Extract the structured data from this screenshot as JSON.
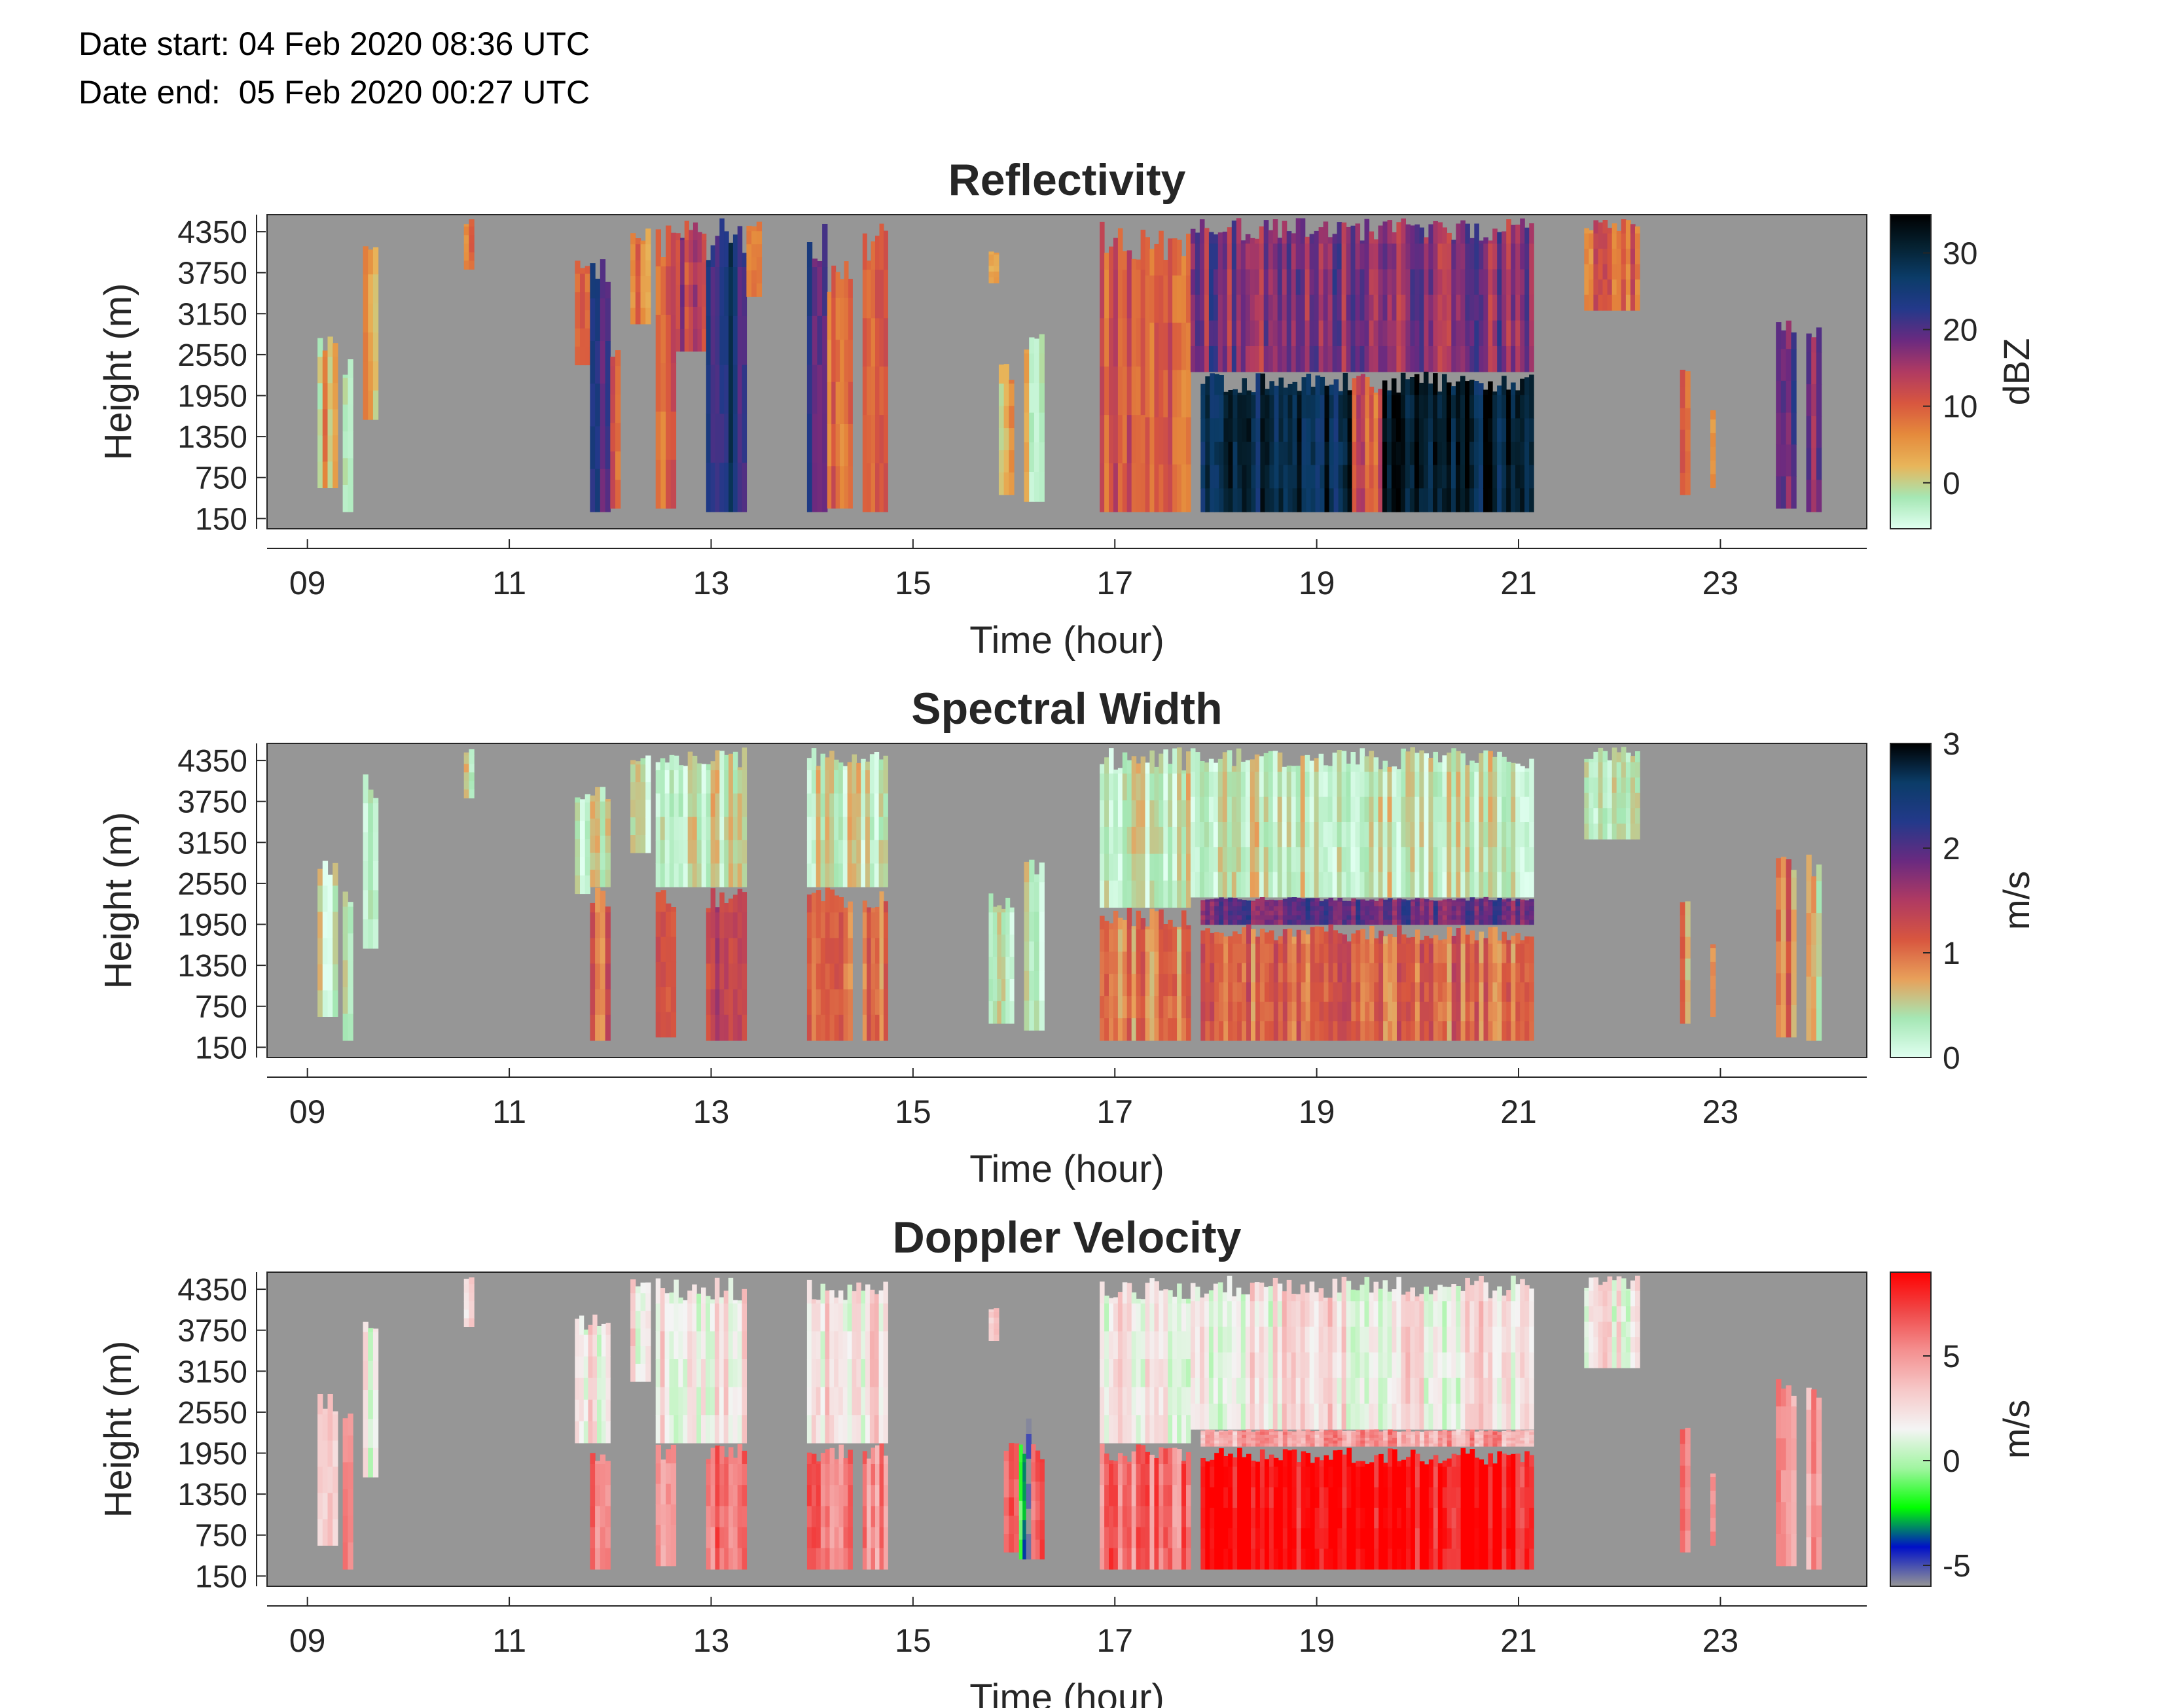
{
  "header": {
    "date_start": "Date start: 04 Feb 2020 08:36 UTC",
    "date_end": "Date end:  05 Feb 2020 00:27 UTC"
  },
  "colors": {
    "missing": "#969696",
    "axis": "#262626",
    "reflectivity_cmap": [
      "#e0fff0",
      "#a5e7b4",
      "#e8b55a",
      "#e58a3c",
      "#d8563f",
      "#b03a62",
      "#6a2a80",
      "#23398a",
      "#0b3c68",
      "#052130",
      "#000000"
    ],
    "spectral_width_cmap": [
      "#e0fff0",
      "#a5e7b4",
      "#e8a05a",
      "#d8563f",
      "#b03a62",
      "#6a2a80",
      "#23398a",
      "#0b3c68",
      "#000000"
    ],
    "doppler_cmap": [
      "#969696",
      "#0010c8",
      "#00ff00",
      "#a0f5a0",
      "#f4f4f4",
      "#f6c8c8",
      "#f49090",
      "#f04848",
      "#ff0000"
    ]
  },
  "chart_data": [
    {
      "type": "heatmap",
      "id": "reflectivity",
      "title": "Reflectivity",
      "xlabel": "Time (hour)",
      "ylabel": "Height (m)",
      "xlim": [
        8.6,
        24.45
      ],
      "ylim": [
        0,
        4600
      ],
      "x_ticks": [
        "09",
        "11",
        "13",
        "15",
        "17",
        "19",
        "21",
        "23"
      ],
      "x_tick_values": [
        9,
        11,
        13,
        15,
        17,
        19,
        21,
        23
      ],
      "y_ticks": [
        "4350",
        "3750",
        "3150",
        "2550",
        "1950",
        "1350",
        "750",
        "150"
      ],
      "y_tick_values": [
        4350,
        3750,
        3150,
        2550,
        1950,
        1350,
        750,
        150
      ],
      "colorbar": {
        "label": "dBZ",
        "range": [
          -6,
          35
        ],
        "ticks": [
          0,
          10,
          20,
          30
        ]
      },
      "echoes": [
        {
          "start": 9.1,
          "end": 9.3,
          "top": 2900,
          "bottom": 600,
          "value": 4
        },
        {
          "start": 9.35,
          "end": 9.45,
          "top": 2600,
          "bottom": 250,
          "value": 1
        },
        {
          "start": 9.55,
          "end": 9.7,
          "top": 4150,
          "bottom": 1600,
          "value": 3
        },
        {
          "start": 10.55,
          "end": 10.65,
          "top": 4550,
          "bottom": 3800,
          "value": 6
        },
        {
          "start": 11.65,
          "end": 11.8,
          "top": 4000,
          "bottom": 2400,
          "value": 8
        },
        {
          "start": 11.8,
          "end": 12.0,
          "top": 4000,
          "bottom": 250,
          "value": 21
        },
        {
          "start": 12.0,
          "end": 12.1,
          "top": 2800,
          "bottom": 300,
          "value": 12
        },
        {
          "start": 12.2,
          "end": 12.4,
          "top": 4400,
          "bottom": 3000,
          "value": 6
        },
        {
          "start": 12.45,
          "end": 12.65,
          "top": 4550,
          "bottom": 300,
          "value": 11
        },
        {
          "start": 12.65,
          "end": 12.95,
          "top": 4550,
          "bottom": 2600,
          "value": 14
        },
        {
          "start": 12.95,
          "end": 13.35,
          "top": 4550,
          "bottom": 250,
          "value": 24
        },
        {
          "start": 13.35,
          "end": 13.5,
          "top": 4550,
          "bottom": 3400,
          "value": 6
        },
        {
          "start": 13.95,
          "end": 14.15,
          "top": 4550,
          "bottom": 250,
          "value": 19
        },
        {
          "start": 14.15,
          "end": 14.4,
          "top": 4000,
          "bottom": 300,
          "value": 10
        },
        {
          "start": 14.5,
          "end": 14.75,
          "top": 4500,
          "bottom": 250,
          "value": 10
        },
        {
          "start": 15.75,
          "end": 15.85,
          "top": 4100,
          "bottom": 3600,
          "value": 2
        },
        {
          "start": 15.85,
          "end": 16.0,
          "top": 2450,
          "bottom": 500,
          "value": 2
        },
        {
          "start": 16.1,
          "end": 16.3,
          "top": 3000,
          "bottom": 400,
          "value": 1
        },
        {
          "start": 16.85,
          "end": 17.3,
          "top": 4500,
          "bottom": 250,
          "value": 11
        },
        {
          "start": 17.3,
          "end": 17.75,
          "top": 4400,
          "bottom": 250,
          "value": 10
        },
        {
          "start": 17.75,
          "end": 21.15,
          "top": 4550,
          "bottom": 2300,
          "value": 17
        },
        {
          "start": 17.85,
          "end": 19.35,
          "top": 2300,
          "bottom": 250,
          "value": 29
        },
        {
          "start": 19.35,
          "end": 19.65,
          "top": 2300,
          "bottom": 250,
          "value": 11
        },
        {
          "start": 19.65,
          "end": 21.15,
          "top": 2300,
          "bottom": 250,
          "value": 31
        },
        {
          "start": 21.65,
          "end": 22.2,
          "top": 4550,
          "bottom": 3200,
          "value": 9
        },
        {
          "start": 22.6,
          "end": 22.7,
          "top": 2400,
          "bottom": 500,
          "value": 9
        },
        {
          "start": 22.9,
          "end": 22.95,
          "top": 1800,
          "bottom": 600,
          "value": 9
        },
        {
          "start": 23.55,
          "end": 23.75,
          "top": 3100,
          "bottom": 300,
          "value": 19
        },
        {
          "start": 23.85,
          "end": 24.0,
          "top": 3050,
          "bottom": 250,
          "value": 19
        }
      ]
    },
    {
      "type": "heatmap",
      "id": "spectral_width",
      "title": "Spectral Width",
      "xlabel": "Time (hour)",
      "ylabel": "Height (m)",
      "xlim": [
        8.6,
        24.45
      ],
      "ylim": [
        0,
        4600
      ],
      "x_ticks": [
        "09",
        "11",
        "13",
        "15",
        "17",
        "19",
        "21",
        "23"
      ],
      "x_tick_values": [
        9,
        11,
        13,
        15,
        17,
        19,
        21,
        23
      ],
      "y_ticks": [
        "4350",
        "3750",
        "3150",
        "2550",
        "1950",
        "1350",
        "750",
        "150"
      ],
      "y_tick_values": [
        4350,
        3750,
        3150,
        2550,
        1950,
        1350,
        750,
        150
      ],
      "colorbar": {
        "label": "m/s",
        "range": [
          0,
          3
        ],
        "ticks": [
          0,
          1,
          2,
          3
        ]
      },
      "echoes": [
        {
          "start": 9.1,
          "end": 9.3,
          "top": 2900,
          "bottom": 600,
          "value": 0.3
        },
        {
          "start": 9.35,
          "end": 9.45,
          "top": 2600,
          "bottom": 250,
          "value": 0.25
        },
        {
          "start": 9.55,
          "end": 9.7,
          "top": 4150,
          "bottom": 1600,
          "value": 0.25
        },
        {
          "start": 10.55,
          "end": 10.65,
          "top": 4550,
          "bottom": 3800,
          "value": 0.3
        },
        {
          "start": 11.65,
          "end": 11.8,
          "top": 4000,
          "bottom": 2400,
          "value": 0.35
        },
        {
          "start": 11.8,
          "end": 12.0,
          "top": 2500,
          "bottom": 250,
          "value": 1.1
        },
        {
          "start": 11.8,
          "end": 12.0,
          "top": 4000,
          "bottom": 2500,
          "value": 0.35
        },
        {
          "start": 12.2,
          "end": 12.4,
          "top": 4550,
          "bottom": 3000,
          "value": 0.3
        },
        {
          "start": 12.45,
          "end": 12.95,
          "top": 4550,
          "bottom": 2500,
          "value": 0.35
        },
        {
          "start": 12.45,
          "end": 12.65,
          "top": 2500,
          "bottom": 300,
          "value": 1.0
        },
        {
          "start": 12.95,
          "end": 13.35,
          "top": 4550,
          "bottom": 2500,
          "value": 0.4
        },
        {
          "start": 12.95,
          "end": 13.35,
          "top": 2500,
          "bottom": 250,
          "value": 1.25
        },
        {
          "start": 13.95,
          "end": 14.75,
          "top": 4550,
          "bottom": 2500,
          "value": 0.35
        },
        {
          "start": 13.95,
          "end": 14.4,
          "top": 2500,
          "bottom": 250,
          "value": 1.1
        },
        {
          "start": 14.5,
          "end": 14.75,
          "top": 2500,
          "bottom": 250,
          "value": 1.0
        },
        {
          "start": 15.75,
          "end": 16.0,
          "top": 2450,
          "bottom": 500,
          "value": 0.3
        },
        {
          "start": 16.1,
          "end": 16.3,
          "top": 3000,
          "bottom": 400,
          "value": 0.3
        },
        {
          "start": 16.85,
          "end": 17.75,
          "top": 4550,
          "bottom": 2200,
          "value": 0.35
        },
        {
          "start": 16.85,
          "end": 17.75,
          "top": 2200,
          "bottom": 250,
          "value": 0.9
        },
        {
          "start": 17.75,
          "end": 21.15,
          "top": 4550,
          "bottom": 2350,
          "value": 0.35
        },
        {
          "start": 17.85,
          "end": 21.15,
          "top": 2350,
          "bottom": 1950,
          "value": 1.9
        },
        {
          "start": 17.85,
          "end": 21.15,
          "top": 1950,
          "bottom": 250,
          "value": 1.05
        },
        {
          "start": 21.65,
          "end": 22.2,
          "top": 4550,
          "bottom": 3200,
          "value": 0.3
        },
        {
          "start": 22.6,
          "end": 22.7,
          "top": 2400,
          "bottom": 500,
          "value": 0.8
        },
        {
          "start": 22.9,
          "end": 22.95,
          "top": 1800,
          "bottom": 600,
          "value": 0.9
        },
        {
          "start": 23.55,
          "end": 23.75,
          "top": 3100,
          "bottom": 300,
          "value": 0.9
        },
        {
          "start": 23.85,
          "end": 24.0,
          "top": 3050,
          "bottom": 250,
          "value": 0.8
        }
      ]
    },
    {
      "type": "heatmap",
      "id": "doppler_velocity",
      "title": "Doppler Velocity",
      "xlabel": "Time (hour)",
      "ylabel": "Height (m)",
      "xlim": [
        8.6,
        24.45
      ],
      "ylim": [
        0,
        4600
      ],
      "x_ticks": [
        "09",
        "11",
        "13",
        "15",
        "17",
        "19",
        "21",
        "23"
      ],
      "x_tick_values": [
        9,
        11,
        13,
        15,
        17,
        19,
        21,
        23
      ],
      "y_ticks": [
        "4350",
        "3750",
        "3150",
        "2550",
        "1950",
        "1350",
        "750",
        "150"
      ],
      "y_tick_values": [
        4350,
        3750,
        3150,
        2550,
        1950,
        1350,
        750,
        150
      ],
      "colorbar": {
        "label": "m/s",
        "range": [
          -6,
          9
        ],
        "ticks": [
          -5,
          0,
          5
        ]
      },
      "echoes": [
        {
          "start": 9.1,
          "end": 9.3,
          "top": 2900,
          "bottom": 600,
          "value": 2
        },
        {
          "start": 9.35,
          "end": 9.45,
          "top": 2600,
          "bottom": 250,
          "value": 5
        },
        {
          "start": 9.55,
          "end": 9.7,
          "top": 4150,
          "bottom": 1600,
          "value": 2
        },
        {
          "start": 10.55,
          "end": 10.65,
          "top": 4550,
          "bottom": 3800,
          "value": 2
        },
        {
          "start": 11.65,
          "end": 12.0,
          "top": 4000,
          "bottom": 2100,
          "value": 2
        },
        {
          "start": 11.8,
          "end": 12.0,
          "top": 2100,
          "bottom": 250,
          "value": 6
        },
        {
          "start": 12.2,
          "end": 12.4,
          "top": 4550,
          "bottom": 3000,
          "value": 2
        },
        {
          "start": 12.45,
          "end": 13.35,
          "top": 4550,
          "bottom": 2100,
          "value": 2.2
        },
        {
          "start": 12.45,
          "end": 12.65,
          "top": 2100,
          "bottom": 300,
          "value": 5.5
        },
        {
          "start": 12.95,
          "end": 13.35,
          "top": 2100,
          "bottom": 250,
          "value": 6.5
        },
        {
          "start": 13.95,
          "end": 14.75,
          "top": 4550,
          "bottom": 2100,
          "value": 2.2
        },
        {
          "start": 13.95,
          "end": 14.4,
          "top": 2100,
          "bottom": 250,
          "value": 5.5
        },
        {
          "start": 14.5,
          "end": 14.75,
          "top": 2100,
          "bottom": 250,
          "value": 5.5
        },
        {
          "start": 15.75,
          "end": 15.85,
          "top": 4100,
          "bottom": 3600,
          "value": 2
        },
        {
          "start": 15.9,
          "end": 16.05,
          "top": 2100,
          "bottom": 500,
          "value": 6.5
        },
        {
          "start": 16.05,
          "end": 16.12,
          "top": 2100,
          "bottom": 400,
          "value": -2.5
        },
        {
          "start": 16.12,
          "end": 16.17,
          "top": 2600,
          "bottom": 400,
          "value": -5
        },
        {
          "start": 16.17,
          "end": 16.3,
          "top": 2100,
          "bottom": 400,
          "value": 6
        },
        {
          "start": 16.85,
          "end": 17.75,
          "top": 4550,
          "bottom": 2100,
          "value": 2.2
        },
        {
          "start": 16.85,
          "end": 17.75,
          "top": 2100,
          "bottom": 250,
          "value": 6
        },
        {
          "start": 17.75,
          "end": 21.15,
          "top": 4550,
          "bottom": 2300,
          "value": 2.2
        },
        {
          "start": 17.85,
          "end": 21.15,
          "top": 2300,
          "bottom": 2050,
          "value": 4.5
        },
        {
          "start": 17.85,
          "end": 21.15,
          "top": 2050,
          "bottom": 250,
          "value": 8.5
        },
        {
          "start": 21.65,
          "end": 22.2,
          "top": 4550,
          "bottom": 3200,
          "value": 2
        },
        {
          "start": 22.6,
          "end": 22.7,
          "top": 2400,
          "bottom": 500,
          "value": 5
        },
        {
          "start": 22.9,
          "end": 22.95,
          "top": 1800,
          "bottom": 600,
          "value": 5
        },
        {
          "start": 23.55,
          "end": 23.75,
          "top": 3100,
          "bottom": 300,
          "value": 4
        },
        {
          "start": 23.85,
          "end": 24.0,
          "top": 3050,
          "bottom": 250,
          "value": 5
        }
      ]
    }
  ]
}
